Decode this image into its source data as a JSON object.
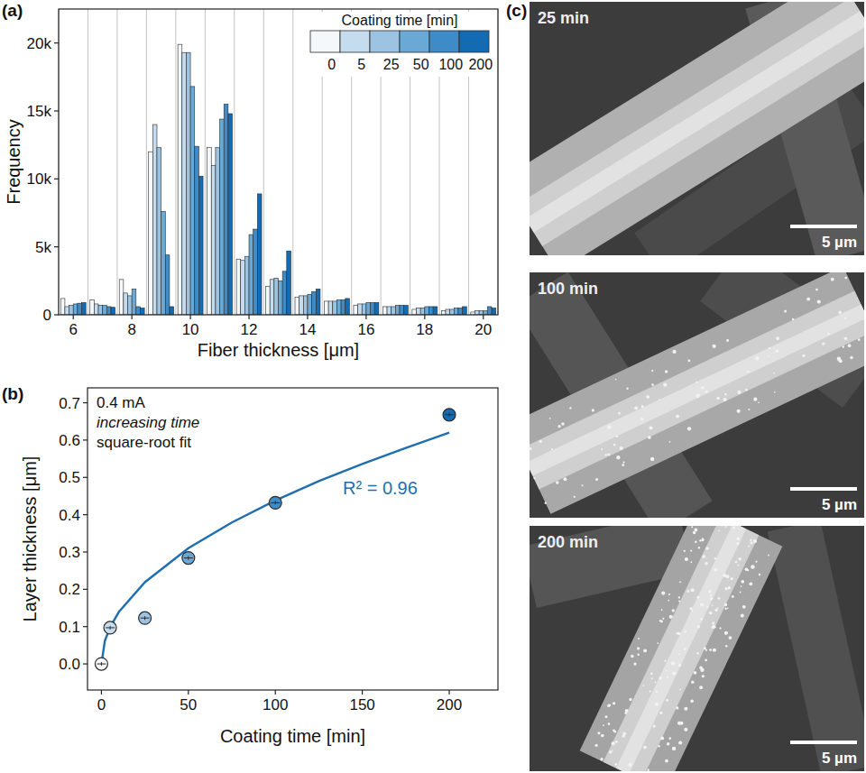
{
  "chart_data": [
    {
      "type": "bar",
      "panel": "(a)",
      "x_label": "Fiber thickness [μm]",
      "y_label": "Frequency",
      "legend_title": "Coating time [min]",
      "legend": "top-right",
      "grid": true,
      "bins": [
        5.5,
        6.5,
        7.5,
        8.5,
        9.5,
        10.5,
        11.5,
        12.5,
        13.5,
        14.5,
        15.5,
        16.5,
        17.5,
        18.5,
        19.5,
        20.5
      ],
      "xlim": [
        5.5,
        20.5
      ],
      "xticks": [
        6,
        8,
        10,
        12,
        14,
        16,
        18,
        20
      ],
      "ylim": [
        0,
        22500
      ],
      "yticks": [
        0,
        {
          "value": 5000,
          "label": "5k"
        },
        {
          "value": 10000,
          "label": "10k"
        },
        {
          "value": 15000,
          "label": "15k"
        },
        {
          "value": 20000,
          "label": "20k"
        }
      ],
      "series": [
        {
          "name": "0",
          "color": "#f4f8fb",
          "values": [
            1200,
            1100,
            2600,
            12000,
            19900,
            12300,
            4100,
            2100,
            1300,
            1000,
            700,
            600,
            400,
            300,
            200
          ]
        },
        {
          "name": "5",
          "color": "#c5dcee",
          "values": [
            600,
            800,
            1600,
            14000,
            19300,
            11000,
            4000,
            2600,
            1400,
            1000,
            800,
            600,
            500,
            400,
            300
          ]
        },
        {
          "name": "25",
          "color": "#9cc3e2",
          "values": [
            700,
            700,
            1400,
            12300,
            19300,
            12300,
            4300,
            2700,
            1400,
            1000,
            800,
            600,
            500,
            400,
            300
          ]
        },
        {
          "name": "50",
          "color": "#6aa8d6",
          "values": [
            800,
            700,
            1900,
            7600,
            16800,
            14400,
            5900,
            2500,
            1500,
            1100,
            900,
            700,
            600,
            500,
            300
          ]
        },
        {
          "name": "100",
          "color": "#3e8bc8",
          "values": [
            850,
            600,
            600,
            4400,
            12400,
            15500,
            6300,
            3200,
            1700,
            1100,
            900,
            700,
            600,
            500,
            600
          ]
        },
        {
          "name": "200",
          "color": "#136bb3",
          "values": [
            900,
            550,
            500,
            600,
            10200,
            14800,
            8900,
            4700,
            1900,
            1200,
            900,
            700,
            600,
            600,
            500
          ]
        }
      ]
    },
    {
      "type": "scatter",
      "panel": "(b)",
      "x_label": "Coating time [min]",
      "y_label": "Layer thickness [μm]",
      "annotations": [
        "0.4 mA",
        "increasing time",
        "square-root fit",
        "R² = 0.96"
      ],
      "xlim": [
        -8,
        228
      ],
      "xticks": [
        0,
        50,
        100,
        150,
        200
      ],
      "ylim": [
        -0.07,
        0.74
      ],
      "yticks": [
        {
          "value": 0,
          "label": "0.0"
        },
        0.1,
        0.2,
        0.3,
        0.4,
        0.5,
        0.6,
        0.7
      ],
      "series": [
        {
          "type": "scatter",
          "marker": "circle",
          "x": [
            0,
            5,
            25,
            50,
            100,
            200
          ],
          "values": [
            0,
            0.097,
            0.123,
            0.284,
            0.432,
            0.668
          ],
          "colors": [
            "#f4f8fb",
            "#c5dcee",
            "#9cc3e2",
            "#6aa8d6",
            "#3e8bc8",
            "#136bb3"
          ]
        },
        {
          "type": "line",
          "line_style": "solid",
          "color": "#1f6fb0",
          "x": [
            0,
            2,
            5,
            10,
            25,
            50,
            75,
            100,
            125,
            150,
            175,
            200
          ],
          "values": [
            0,
            0.062,
            0.098,
            0.139,
            0.219,
            0.31,
            0.379,
            0.438,
            0.49,
            0.536,
            0.579,
            0.62
          ]
        }
      ]
    }
  ],
  "images": {
    "panel": "(c)",
    "items": [
      {
        "label": "25 min",
        "scale_bar": "5 µm"
      },
      {
        "label": "100 min",
        "scale_bar": "5 µm"
      },
      {
        "label": "200 min",
        "scale_bar": "5 µm"
      }
    ]
  }
}
